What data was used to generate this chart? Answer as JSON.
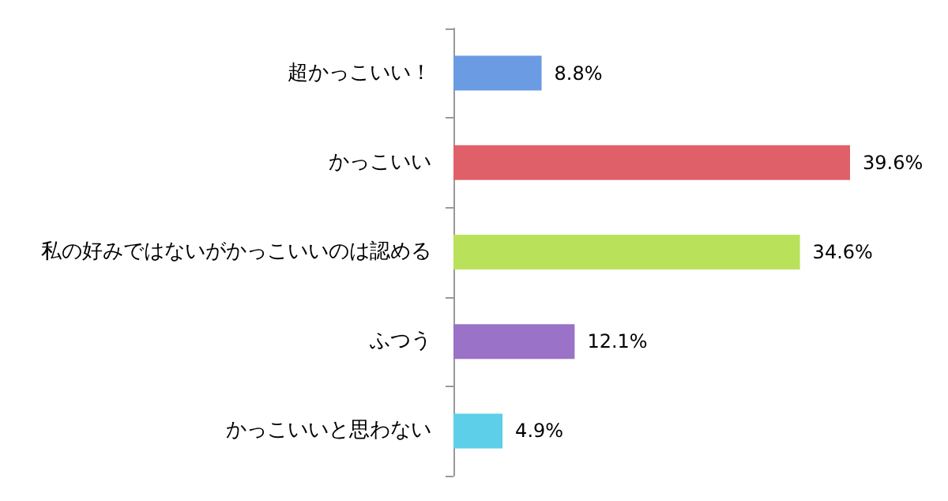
{
  "chart_data": {
    "type": "bar",
    "orientation": "horizontal",
    "categories": [
      "超かっこいい！",
      "かっこいい",
      "私の好みではないがかっこいいのは認める",
      "ふつう",
      "かっこいいと思わない"
    ],
    "values": [
      8.8,
      39.6,
      34.6,
      12.1,
      4.9
    ],
    "colors": [
      "#6b9be3",
      "#e0606a",
      "#b9e25a",
      "#9a72c8",
      "#5dcfe8"
    ],
    "value_labels": [
      "8.8%",
      "39.6%",
      "34.6%",
      "12.1%",
      "4.9%"
    ]
  }
}
